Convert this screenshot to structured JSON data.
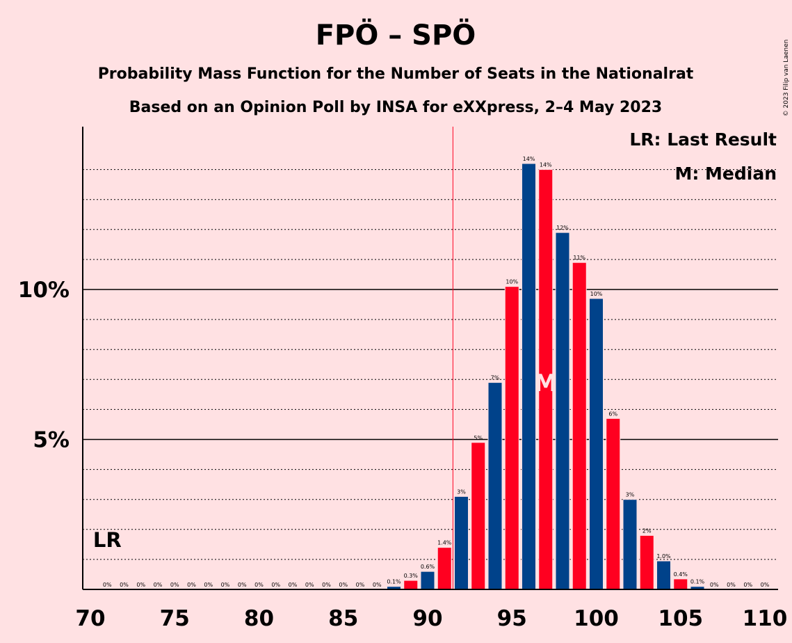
{
  "chart_data": {
    "type": "bar",
    "title": "FPÖ – SPÖ",
    "subtitle": "Probability Mass Function for the Number of Seats in the Nationalrat",
    "subtitle2": "Based on an Opinion Poll by INSA for eXXpress, 2–4 May 2023",
    "copyright": "© 2023 Filip van Laenen",
    "xlim": [
      70,
      110
    ],
    "x_ticks": [
      "70",
      "75",
      "80",
      "85",
      "90",
      "95",
      "100",
      "105",
      "110"
    ],
    "ylim": [
      0,
      15.5
    ],
    "y_ticks": [
      {
        "value": 5,
        "label": "5%"
      },
      {
        "value": 10,
        "label": "10%"
      }
    ],
    "minor_grid_step": 1,
    "grid": true,
    "legend": [
      "LR: Last Result",
      "M: Median"
    ],
    "legend_position": "top-right",
    "last_result": {
      "seat": 91.5,
      "label": "LR"
    },
    "median": {
      "seat": 97,
      "label": "M"
    },
    "colors": {
      "blue": "#00428a",
      "red": "#ff0020",
      "threshold": "#ff0020",
      "background": "#ffe1e3"
    },
    "bars": [
      {
        "seat": 71,
        "value": 0,
        "label": "0%"
      },
      {
        "seat": 72,
        "value": 0,
        "label": "0%"
      },
      {
        "seat": 73,
        "value": 0,
        "label": "0%"
      },
      {
        "seat": 74,
        "value": 0,
        "label": "0%"
      },
      {
        "seat": 75,
        "value": 0,
        "label": "0%"
      },
      {
        "seat": 76,
        "value": 0,
        "label": "0%"
      },
      {
        "seat": 77,
        "value": 0,
        "label": "0%"
      },
      {
        "seat": 78,
        "value": 0,
        "label": "0%"
      },
      {
        "seat": 79,
        "value": 0,
        "label": "0%"
      },
      {
        "seat": 80,
        "value": 0,
        "label": "0%"
      },
      {
        "seat": 81,
        "value": 0,
        "label": "0%"
      },
      {
        "seat": 82,
        "value": 0,
        "label": "0%"
      },
      {
        "seat": 83,
        "value": 0,
        "label": "0%"
      },
      {
        "seat": 84,
        "value": 0,
        "label": "0%"
      },
      {
        "seat": 85,
        "value": 0,
        "label": "0%"
      },
      {
        "seat": 86,
        "value": 0,
        "label": "0%"
      },
      {
        "seat": 87,
        "value": 0,
        "label": "0%"
      },
      {
        "seat": 88,
        "value": 0.1,
        "label": "0.1%"
      },
      {
        "seat": 89,
        "value": 0.3,
        "label": "0.3%"
      },
      {
        "seat": 90,
        "value": 0.6,
        "label": "0.6%"
      },
      {
        "seat": 91,
        "value": 1.4,
        "label": "1.4%"
      },
      {
        "seat": 92,
        "value": 3.1,
        "label": "3%"
      },
      {
        "seat": 93,
        "value": 4.9,
        "label": "5%"
      },
      {
        "seat": 94,
        "value": 6.9,
        "label": "7%"
      },
      {
        "seat": 95,
        "value": 10.1,
        "label": "10%"
      },
      {
        "seat": 96,
        "value": 14.2,
        "label": "14%"
      },
      {
        "seat": 97,
        "value": 14.0,
        "label": "14%"
      },
      {
        "seat": 98,
        "value": 11.9,
        "label": "12%"
      },
      {
        "seat": 99,
        "value": 10.9,
        "label": "11%"
      },
      {
        "seat": 100,
        "value": 9.7,
        "label": "10%"
      },
      {
        "seat": 101,
        "value": 5.7,
        "label": "6%"
      },
      {
        "seat": 102,
        "value": 3.0,
        "label": "3%"
      },
      {
        "seat": 103,
        "value": 1.8,
        "label": "2%"
      },
      {
        "seat": 104,
        "value": 0.95,
        "label": "1.0%"
      },
      {
        "seat": 105,
        "value": 0.35,
        "label": "0.4%"
      },
      {
        "seat": 106,
        "value": 0.1,
        "label": "0.1%"
      },
      {
        "seat": 107,
        "value": 0,
        "label": "0%"
      },
      {
        "seat": 108,
        "value": 0,
        "label": "0%"
      },
      {
        "seat": 109,
        "value": 0,
        "label": "0%"
      },
      {
        "seat": 110,
        "value": 0,
        "label": "0%"
      }
    ]
  }
}
